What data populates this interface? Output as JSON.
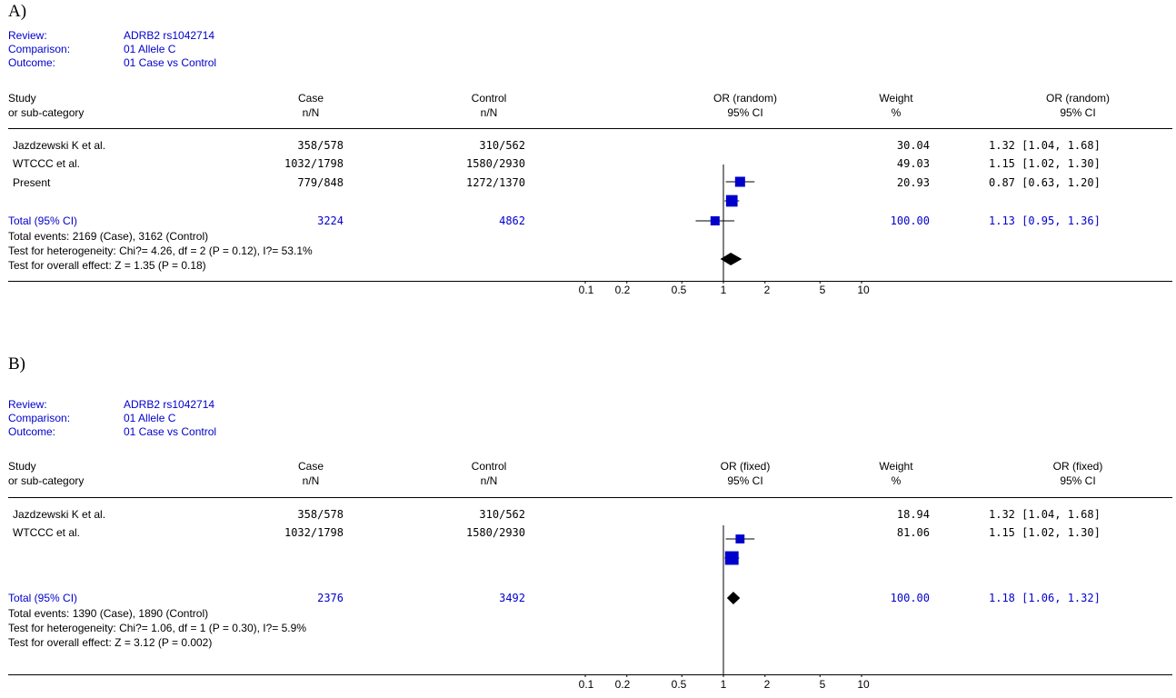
{
  "colors": {
    "meta_text": "#0000cc",
    "marker": "#0000cc",
    "diamond": "#000000",
    "line": "#000000"
  },
  "chart_data": [
    {
      "type": "forest",
      "panel_label": "A)",
      "review_label": "Review:",
      "review": "ADRB2 rs1042714",
      "comparison_label": "Comparison:",
      "comparison": "01 Allele C",
      "outcome_label": "Outcome:",
      "outcome": "01 Case vs Control",
      "headers": {
        "study": "Study",
        "study_sub": "or sub-category",
        "case": "Case",
        "case_sub": "n/N",
        "control": "Control",
        "control_sub": "n/N",
        "plot": "OR (random)",
        "plot_sub": "95% CI",
        "weight": "Weight",
        "weight_sub": "%",
        "or": "OR (random)",
        "or_sub": "95% CI"
      },
      "studies": [
        {
          "name": "Jazdzewski K et al.",
          "case": "358/578",
          "control": "310/562",
          "weight": "30.04",
          "or_text": "1.32 [1.04, 1.68]",
          "or": 1.32,
          "ci": [
            1.04,
            1.68
          ],
          "w": 30.04
        },
        {
          "name": "WTCCC et al.",
          "case": "1032/1798",
          "control": "1580/2930",
          "weight": "49.03",
          "or_text": "1.15 [1.02, 1.30]",
          "or": 1.15,
          "ci": [
            1.02,
            1.3
          ],
          "w": 49.03
        },
        {
          "name": "Present",
          "case": "779/848",
          "control": "1272/1370",
          "weight": "20.93",
          "or_text": "0.87 [0.63, 1.20]",
          "or": 0.87,
          "ci": [
            0.63,
            1.2
          ],
          "w": 20.93
        }
      ],
      "total": {
        "label": "Total (95% CI)",
        "case": "3224",
        "control": "4862",
        "weight": "100.00",
        "or_text": "1.13 [0.95, 1.36]",
        "or": 1.13,
        "ci": [
          0.95,
          1.36
        ]
      },
      "notes": [
        "Total events: 2169 (Case), 3162 (Control)",
        "Test for heterogeneity: Chi?= 4.26, df = 2 (P = 0.12), I?= 53.1%",
        "Test for overall effect: Z = 1.35 (P = 0.18)"
      ],
      "x_scale": "log",
      "x_ticks": [
        "0.1",
        "0.2",
        "0.5",
        "1",
        "2",
        "5",
        "10"
      ],
      "xlim": [
        0.1,
        10
      ]
    },
    {
      "type": "forest",
      "panel_label": "B)",
      "review_label": "Review:",
      "review": "ADRB2 rs1042714",
      "comparison_label": "Comparison:",
      "comparison": "01 Allele C",
      "outcome_label": "Outcome:",
      "outcome": "01 Case vs Control",
      "headers": {
        "study": "Study",
        "study_sub": "or sub-category",
        "case": "Case",
        "case_sub": "n/N",
        "control": "Control",
        "control_sub": "n/N",
        "plot": "OR (fixed)",
        "plot_sub": "95% CI",
        "weight": "Weight",
        "weight_sub": "%",
        "or": "OR (fixed)",
        "or_sub": "95% CI"
      },
      "studies": [
        {
          "name": "Jazdzewski K et al.",
          "case": "358/578",
          "control": "310/562",
          "weight": "18.94",
          "or_text": "1.32 [1.04, 1.68]",
          "or": 1.32,
          "ci": [
            1.04,
            1.68
          ],
          "w": 18.94
        },
        {
          "name": "WTCCC et al.",
          "case": "1032/1798",
          "control": "1580/2930",
          "weight": "81.06",
          "or_text": "1.15 [1.02, 1.30]",
          "or": 1.15,
          "ci": [
            1.02,
            1.3
          ],
          "w": 81.06
        }
      ],
      "total": {
        "label": "Total (95% CI)",
        "case": "2376",
        "control": "3492",
        "weight": "100.00",
        "or_text": "1.18 [1.06, 1.32]",
        "or": 1.18,
        "ci": [
          1.06,
          1.32
        ]
      },
      "notes": [
        "Total events: 1390 (Case), 1890 (Control)",
        "Test for heterogeneity: Chi?= 1.06, df = 1 (P = 0.30), I?= 5.9%",
        "Test for overall effect: Z = 3.12 (P = 0.002)"
      ],
      "x_scale": "log",
      "x_ticks": [
        "0.1",
        "0.2",
        "0.5",
        "1",
        "2",
        "5",
        "10"
      ],
      "xlim": [
        0.1,
        10
      ]
    }
  ]
}
